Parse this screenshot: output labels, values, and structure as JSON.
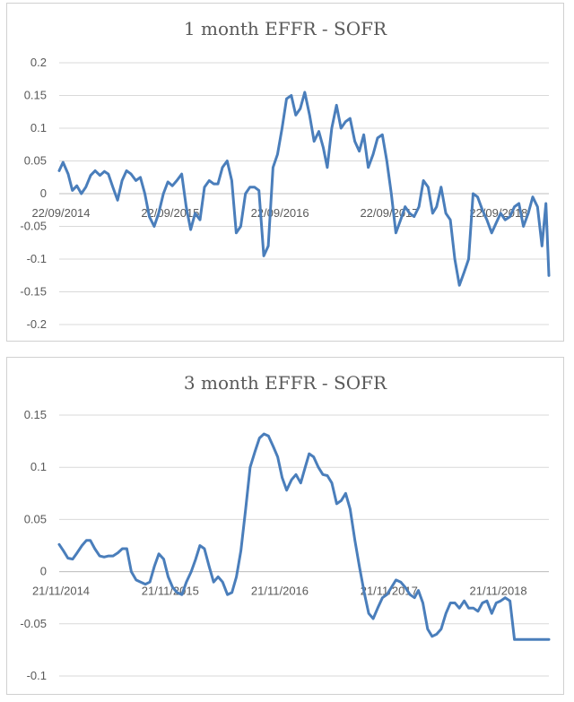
{
  "chart_data": [
    {
      "type": "line",
      "title": "1 month EFFR - SOFR",
      "xlabel": "",
      "ylabel": "",
      "ylim": [
        -0.2,
        0.2
      ],
      "yticks": [
        0.2,
        0.15,
        0.1,
        0.05,
        0,
        -0.05,
        -0.1,
        -0.15,
        -0.2
      ],
      "ytick_labels": [
        "0.2",
        "0.15",
        "0.1",
        "0.05",
        "0",
        "-0.05",
        "-0.1",
        "-0.15",
        "-0.2"
      ],
      "xtick_labels": [
        "22/09/2014",
        "22/09/2015",
        "22/09/2016",
        "22/09/2017",
        "22/09/2018"
      ],
      "grid": true,
      "legend": "none",
      "series_color": "#4a7ebb",
      "x_span": [
        "2014-09-22",
        "2019-03-15"
      ],
      "x": [
        "2014-09-22",
        "2014-10-05",
        "2014-10-22",
        "2014-11-05",
        "2014-11-20",
        "2014-12-05",
        "2014-12-20",
        "2015-01-05",
        "2015-01-20",
        "2015-02-05",
        "2015-02-20",
        "2015-03-05",
        "2015-03-20",
        "2015-04-05",
        "2015-04-20",
        "2015-05-05",
        "2015-05-20",
        "2015-06-05",
        "2015-06-20",
        "2015-07-05",
        "2015-07-20",
        "2015-08-05",
        "2015-08-20",
        "2015-09-05",
        "2015-09-20",
        "2015-10-05",
        "2015-10-20",
        "2015-11-05",
        "2015-11-20",
        "2015-12-05",
        "2015-12-20",
        "2016-01-05",
        "2016-01-20",
        "2016-02-05",
        "2016-02-20",
        "2016-03-05",
        "2016-03-20",
        "2016-04-05",
        "2016-04-20",
        "2016-05-05",
        "2016-05-20",
        "2016-06-05",
        "2016-06-20",
        "2016-07-05",
        "2016-07-20",
        "2016-08-05",
        "2016-08-20",
        "2016-09-05",
        "2016-09-20",
        "2016-10-05",
        "2016-10-20",
        "2016-11-05",
        "2016-11-20",
        "2016-12-05",
        "2016-12-20",
        "2017-01-05",
        "2017-01-20",
        "2017-02-05",
        "2017-02-20",
        "2017-03-05",
        "2017-03-20",
        "2017-04-05",
        "2017-04-20",
        "2017-05-05",
        "2017-05-20",
        "2017-06-05",
        "2017-06-20",
        "2017-07-05",
        "2017-07-20",
        "2017-08-05",
        "2017-08-20",
        "2017-09-05",
        "2017-09-20",
        "2017-10-05",
        "2017-10-20",
        "2017-11-05",
        "2017-11-20",
        "2017-12-05",
        "2017-12-20",
        "2018-01-05",
        "2018-01-20",
        "2018-02-05",
        "2018-02-20",
        "2018-03-05",
        "2018-03-20",
        "2018-04-05",
        "2018-04-20",
        "2018-05-05",
        "2018-05-20",
        "2018-06-05",
        "2018-06-20",
        "2018-07-05",
        "2018-07-20",
        "2018-08-05",
        "2018-08-20",
        "2018-09-05",
        "2018-09-20",
        "2018-10-05",
        "2018-10-20",
        "2018-11-05",
        "2018-11-20",
        "2018-12-05",
        "2018-12-20",
        "2019-01-05",
        "2019-01-20",
        "2019-02-05",
        "2019-02-20",
        "2019-03-05",
        "2019-03-15"
      ],
      "series": [
        {
          "values": [
            0.035,
            0.048,
            0.03,
            0.005,
            0.012,
            0.0,
            0.01,
            0.028,
            0.035,
            0.028,
            0.034,
            0.03,
            0.01,
            -0.01,
            0.02,
            0.035,
            0.03,
            0.02,
            0.025,
            0.0,
            -0.035,
            -0.05,
            -0.03,
            0.0,
            0.018,
            0.012,
            0.02,
            0.03,
            -0.02,
            -0.055,
            -0.03,
            -0.04,
            0.01,
            0.02,
            0.015,
            0.015,
            0.04,
            0.05,
            0.02,
            -0.06,
            -0.05,
            0.0,
            0.01,
            0.01,
            0.005,
            -0.095,
            -0.08,
            0.04,
            0.06,
            0.1,
            0.145,
            0.15,
            0.12,
            0.13,
            0.155,
            0.12,
            0.08,
            0.095,
            0.07,
            0.04,
            0.1,
            0.135,
            0.1,
            0.11,
            0.115,
            0.08,
            0.065,
            0.09,
            0.04,
            0.06,
            0.085,
            0.09,
            0.05,
            0.0,
            -0.06,
            -0.04,
            -0.02,
            -0.03,
            -0.035,
            -0.02,
            0.02,
            0.01,
            -0.03,
            -0.02,
            0.01,
            -0.03,
            -0.04,
            -0.1,
            -0.14,
            -0.12,
            -0.1,
            0.0,
            -0.005,
            -0.025,
            -0.04,
            -0.06,
            -0.045,
            -0.03,
            -0.04,
            -0.035,
            -0.02,
            -0.015,
            -0.05,
            -0.03,
            -0.005,
            -0.02,
            -0.08,
            -0.015,
            -0.125
          ]
        }
      ]
    },
    {
      "type": "line",
      "title": "3 month EFFR - SOFR",
      "xlabel": "",
      "ylabel": "",
      "ylim": [
        -0.1,
        0.15
      ],
      "yticks": [
        0.15,
        0.1,
        0.05,
        0,
        -0.05,
        -0.1
      ],
      "ytick_labels": [
        "0.15",
        "0.1",
        "0.05",
        "0",
        "-0.05",
        "-0.1"
      ],
      "xtick_labels": [
        "21/11/2014",
        "21/11/2015",
        "21/11/2016",
        "21/11/2017",
        "21/11/2018"
      ],
      "grid": true,
      "legend": "none",
      "series_color": "#4a7ebb",
      "x_span": [
        "2014-11-21",
        "2019-05-15"
      ],
      "x": [
        "2014-11-21",
        "2014-12-05",
        "2014-12-20",
        "2015-01-05",
        "2015-01-20",
        "2015-02-05",
        "2015-02-20",
        "2015-03-05",
        "2015-03-20",
        "2015-04-05",
        "2015-04-20",
        "2015-05-05",
        "2015-05-20",
        "2015-06-05",
        "2015-06-20",
        "2015-07-05",
        "2015-07-20",
        "2015-08-05",
        "2015-08-20",
        "2015-09-05",
        "2015-09-20",
        "2015-10-05",
        "2015-10-20",
        "2015-11-05",
        "2015-11-20",
        "2015-12-05",
        "2015-12-20",
        "2016-01-05",
        "2016-01-20",
        "2016-02-05",
        "2016-02-20",
        "2016-03-05",
        "2016-03-20",
        "2016-04-05",
        "2016-04-20",
        "2016-05-05",
        "2016-05-20",
        "2016-06-05",
        "2016-06-20",
        "2016-07-05",
        "2016-07-20",
        "2016-08-05",
        "2016-08-20",
        "2016-09-05",
        "2016-09-20",
        "2016-10-05",
        "2016-10-20",
        "2016-11-05",
        "2016-11-20",
        "2016-12-05",
        "2016-12-20",
        "2017-01-05",
        "2017-01-20",
        "2017-02-05",
        "2017-02-20",
        "2017-03-05",
        "2017-03-20",
        "2017-04-05",
        "2017-04-20",
        "2017-05-05",
        "2017-05-20",
        "2017-06-05",
        "2017-06-20",
        "2017-07-05",
        "2017-07-20",
        "2017-08-05",
        "2017-08-20",
        "2017-09-05",
        "2017-09-20",
        "2017-10-05",
        "2017-10-20",
        "2017-11-05",
        "2017-11-20",
        "2017-12-05",
        "2017-12-20",
        "2018-01-05",
        "2018-01-20",
        "2018-02-05",
        "2018-02-20",
        "2018-03-05",
        "2018-03-20",
        "2018-04-05",
        "2018-04-20",
        "2018-05-05",
        "2018-05-20",
        "2018-06-05",
        "2018-06-20",
        "2018-07-05",
        "2018-07-20",
        "2018-08-05",
        "2018-08-20",
        "2018-09-05",
        "2018-09-20",
        "2018-10-05",
        "2018-10-20",
        "2018-11-05",
        "2018-11-20",
        "2018-12-05",
        "2018-12-20",
        "2019-01-05",
        "2019-01-20",
        "2019-02-05",
        "2019-02-20",
        "2019-03-05",
        "2019-03-20",
        "2019-04-05",
        "2019-04-20",
        "2019-05-05",
        "2019-05-15"
      ],
      "series": [
        {
          "values": [
            0.026,
            0.02,
            0.013,
            0.012,
            0.018,
            0.025,
            0.03,
            0.03,
            0.022,
            0.015,
            0.014,
            0.015,
            0.015,
            0.018,
            0.022,
            0.022,
            0.0,
            -0.008,
            -0.01,
            -0.012,
            -0.01,
            0.005,
            0.017,
            0.012,
            -0.005,
            -0.015,
            -0.02,
            -0.022,
            -0.01,
            0.0,
            0.012,
            0.025,
            0.022,
            0.005,
            -0.01,
            -0.005,
            -0.01,
            -0.022,
            -0.02,
            -0.005,
            0.02,
            0.06,
            0.1,
            0.115,
            0.128,
            0.132,
            0.13,
            0.12,
            0.11,
            0.09,
            0.078,
            0.088,
            0.093,
            0.085,
            0.1,
            0.113,
            0.11,
            0.1,
            0.093,
            0.092,
            0.085,
            0.065,
            0.068,
            0.075,
            0.06,
            0.03,
            0.005,
            -0.02,
            -0.04,
            -0.045,
            -0.035,
            -0.025,
            -0.022,
            -0.015,
            -0.008,
            -0.01,
            -0.015,
            -0.022,
            -0.025,
            -0.018,
            -0.03,
            -0.055,
            -0.062,
            -0.06,
            -0.055,
            -0.04,
            -0.03,
            -0.03,
            -0.035,
            -0.028,
            -0.035,
            -0.035,
            -0.038,
            -0.03,
            -0.028,
            -0.04,
            -0.03,
            -0.028,
            -0.025,
            -0.028,
            -0.065,
            -0.065,
            -0.065,
            -0.065,
            -0.065,
            -0.065,
            -0.065,
            -0.065,
            -0.065
          ]
        }
      ]
    }
  ]
}
